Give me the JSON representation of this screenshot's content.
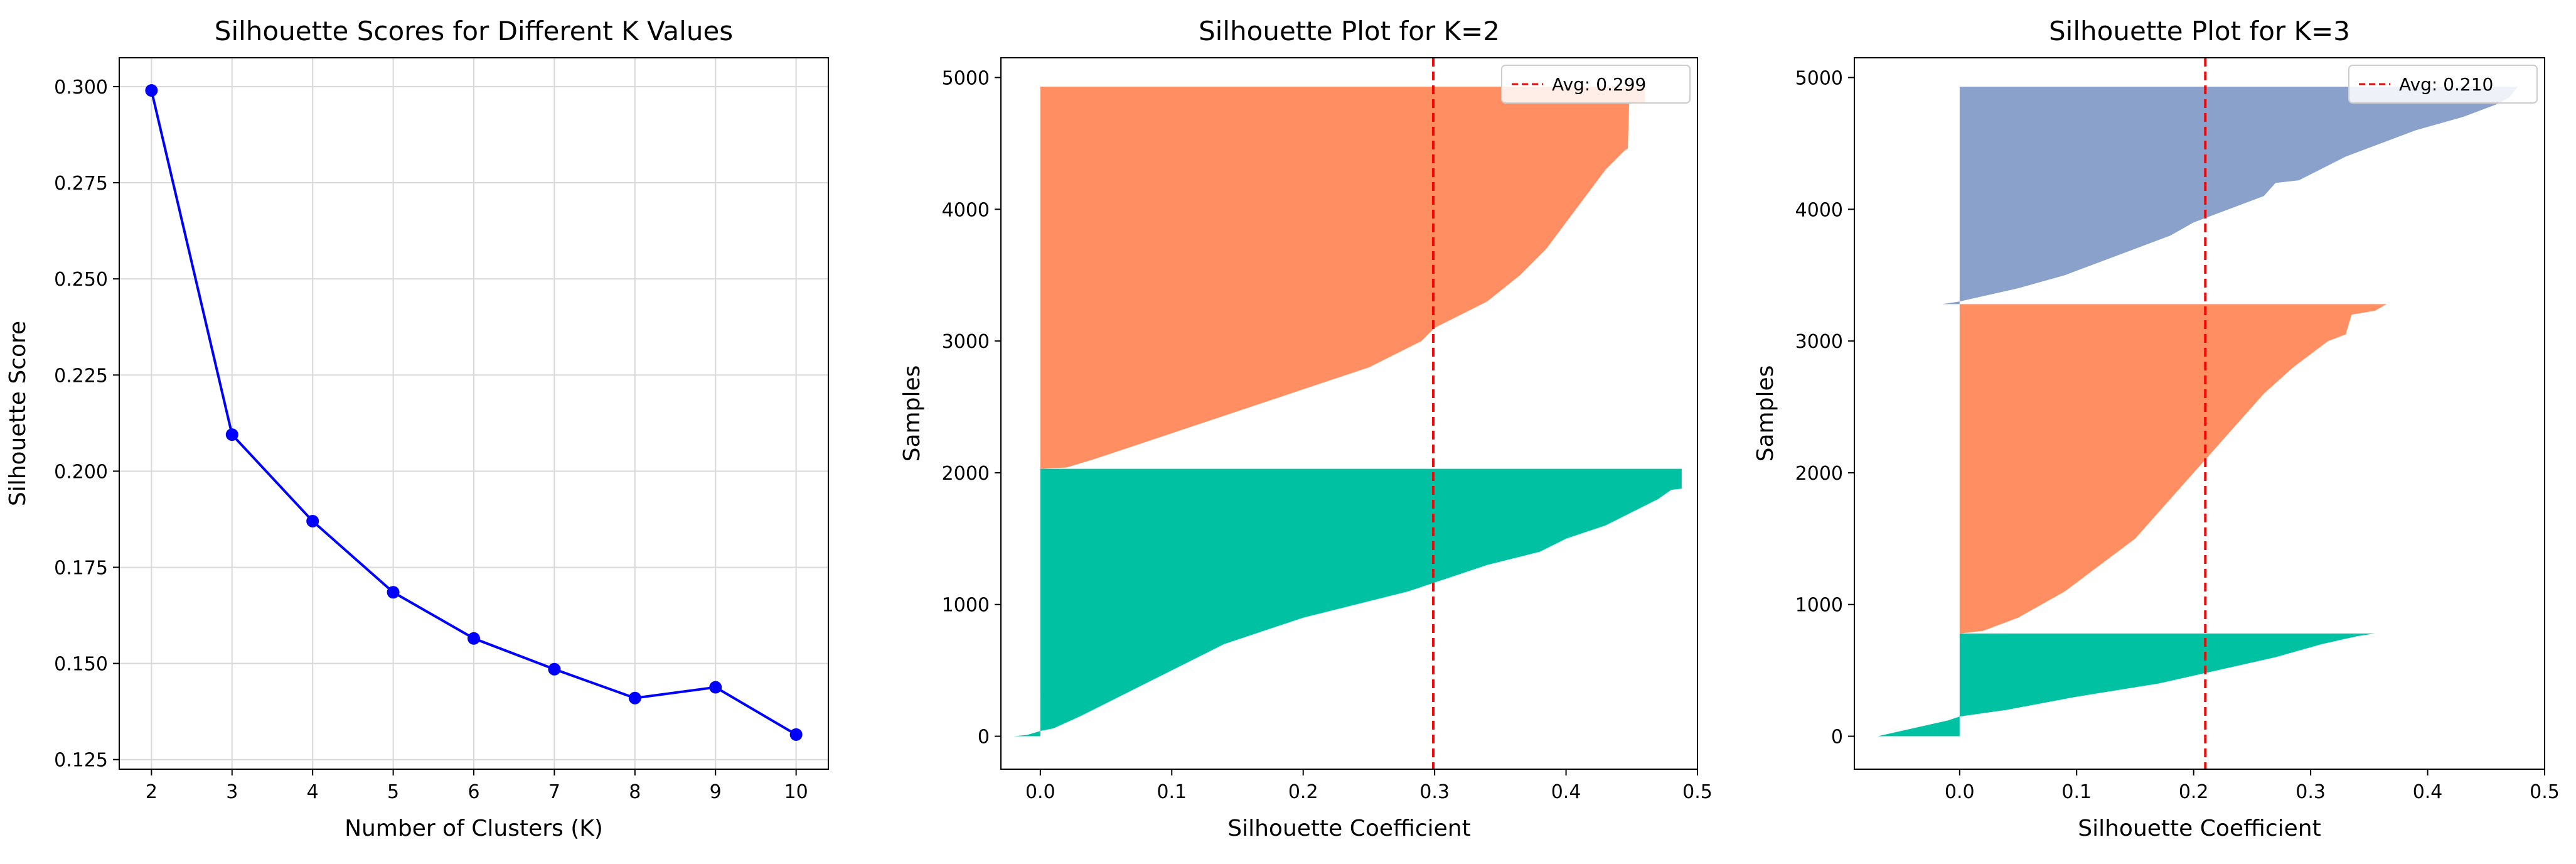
{
  "chart_data": [
    {
      "type": "line",
      "title": "Silhouette Scores for Different K Values",
      "xlabel": "Number of Clusters (K)",
      "ylabel": "Silhouette Score",
      "x": [
        2,
        3,
        4,
        5,
        6,
        7,
        8,
        9,
        10
      ],
      "y": [
        0.299,
        0.2095,
        0.187,
        0.1685,
        0.1565,
        0.1485,
        0.141,
        0.1438,
        0.1315
      ],
      "xticks": [
        2,
        3,
        4,
        5,
        6,
        7,
        8,
        9,
        10
      ],
      "xtick_labels": [
        "2",
        "3",
        "4",
        "5",
        "6",
        "7",
        "8",
        "9",
        "10"
      ],
      "yticks": [
        0.125,
        0.15,
        0.175,
        0.2,
        0.225,
        0.25,
        0.275,
        0.3
      ],
      "ytick_labels": [
        "0.125",
        "0.150",
        "0.175",
        "0.200",
        "0.225",
        "0.250",
        "0.275",
        "0.300"
      ],
      "xlim": [
        1.6,
        10.4
      ],
      "ylim": [
        0.1225,
        0.3075
      ],
      "grid": true,
      "color": "#0000ff",
      "marker": "circle"
    },
    {
      "type": "area",
      "title": "Silhouette Plot for K=2",
      "xlabel": "Silhouette Coefficient",
      "ylabel": "Samples",
      "xlim": [
        -0.03,
        0.5
      ],
      "ylim": [
        -250,
        5150
      ],
      "xticks": [
        0.0,
        0.1,
        0.2,
        0.3,
        0.4,
        0.5
      ],
      "xtick_labels": [
        "0.0",
        "0.1",
        "0.2",
        "0.3",
        "0.4",
        "0.5"
      ],
      "yticks": [
        0,
        1000,
        2000,
        3000,
        4000,
        5000
      ],
      "ytick_labels": [
        "0",
        "1000",
        "2000",
        "3000",
        "4000",
        "5000"
      ],
      "avg_line": {
        "value": 0.299,
        "label": "Avg: 0.299",
        "color": "#ff0000"
      },
      "legend_position": "top-right",
      "grid": false,
      "series": [
        {
          "cluster": 0,
          "color": "#00c2a3",
          "y_range": [
            0,
            2030
          ],
          "profile": [
            [
              0,
              -0.02
            ],
            [
              10,
              -0.01
            ],
            [
              40,
              0.0
            ],
            [
              60,
              0.01
            ],
            [
              150,
              0.03
            ],
            [
              300,
              0.06
            ],
            [
              500,
              0.1
            ],
            [
              700,
              0.14
            ],
            [
              900,
              0.2
            ],
            [
              1000,
              0.24
            ],
            [
              1100,
              0.28
            ],
            [
              1200,
              0.31
            ],
            [
              1300,
              0.34
            ],
            [
              1400,
              0.38
            ],
            [
              1450,
              0.39
            ],
            [
              1500,
              0.4
            ],
            [
              1600,
              0.43
            ],
            [
              1700,
              0.45
            ],
            [
              1800,
              0.47
            ],
            [
              1870,
              0.48
            ],
            [
              1880,
              0.488
            ],
            [
              2030,
              0.488
            ]
          ]
        },
        {
          "cluster": 1,
          "color": "#ff8f62",
          "y_range": [
            2030,
            4930
          ],
          "profile": [
            [
              2030,
              0.0
            ],
            [
              2040,
              0.02
            ],
            [
              2100,
              0.04
            ],
            [
              2200,
              0.07
            ],
            [
              2300,
              0.1
            ],
            [
              2400,
              0.13
            ],
            [
              2500,
              0.16
            ],
            [
              2600,
              0.19
            ],
            [
              2700,
              0.22
            ],
            [
              2800,
              0.25
            ],
            [
              2900,
              0.27
            ],
            [
              3000,
              0.29
            ],
            [
              3100,
              0.3
            ],
            [
              3200,
              0.32
            ],
            [
              3300,
              0.34
            ],
            [
              3500,
              0.365
            ],
            [
              3700,
              0.385
            ],
            [
              3900,
              0.4
            ],
            [
              4100,
              0.415
            ],
            [
              4300,
              0.43
            ],
            [
              4450,
              0.445
            ],
            [
              4460,
              0.447
            ],
            [
              4800,
              0.448
            ],
            [
              4810,
              0.46
            ],
            [
              4930,
              0.46
            ]
          ]
        }
      ]
    },
    {
      "type": "area",
      "title": "Silhouette Plot for K=3",
      "xlabel": "Silhouette Coefficient",
      "ylabel": "Samples",
      "xlim": [
        -0.09,
        0.5
      ],
      "ylim": [
        -250,
        5150
      ],
      "xticks": [
        0.0,
        0.1,
        0.2,
        0.3,
        0.4,
        0.5
      ],
      "xtick_labels": [
        "0.0",
        "0.1",
        "0.2",
        "0.3",
        "0.4",
        "0.5"
      ],
      "yticks": [
        0,
        1000,
        2000,
        3000,
        4000,
        5000
      ],
      "ytick_labels": [
        "0",
        "1000",
        "2000",
        "3000",
        "4000",
        "5000"
      ],
      "avg_line": {
        "value": 0.21,
        "label": "Avg: 0.210",
        "color": "#ff0000"
      },
      "legend_position": "top-right",
      "grid": false,
      "series": [
        {
          "cluster": 0,
          "color": "#00c2a3",
          "y_range": [
            0,
            780
          ],
          "profile": [
            [
              0,
              -0.07
            ],
            [
              40,
              -0.05
            ],
            [
              80,
              -0.03
            ],
            [
              120,
              -0.01
            ],
            [
              150,
              0.0
            ],
            [
              200,
              0.04
            ],
            [
              300,
              0.1
            ],
            [
              400,
              0.17
            ],
            [
              500,
              0.22
            ],
            [
              600,
              0.27
            ],
            [
              700,
              0.31
            ],
            [
              740,
              0.33
            ],
            [
              760,
              0.34
            ],
            [
              780,
              0.355
            ]
          ]
        },
        {
          "cluster": 1,
          "color": "#ff8f62",
          "y_range": [
            780,
            3280
          ],
          "profile": [
            [
              780,
              0.0
            ],
            [
              800,
              0.02
            ],
            [
              900,
              0.05
            ],
            [
              1100,
              0.09
            ],
            [
              1300,
              0.12
            ],
            [
              1500,
              0.15
            ],
            [
              1700,
              0.17
            ],
            [
              1900,
              0.19
            ],
            [
              2000,
              0.2
            ],
            [
              2200,
              0.22
            ],
            [
              2400,
              0.24
            ],
            [
              2600,
              0.26
            ],
            [
              2800,
              0.285
            ],
            [
              2900,
              0.3
            ],
            [
              3000,
              0.315
            ],
            [
              3050,
              0.33
            ],
            [
              3200,
              0.335
            ],
            [
              3230,
              0.355
            ],
            [
              3280,
              0.365
            ]
          ]
        },
        {
          "cluster": 2,
          "color": "#8aa1cc",
          "y_range": [
            3280,
            4930
          ],
          "profile": [
            [
              3280,
              -0.015
            ],
            [
              3300,
              0.0
            ],
            [
              3400,
              0.05
            ],
            [
              3500,
              0.09
            ],
            [
              3600,
              0.12
            ],
            [
              3700,
              0.15
            ],
            [
              3800,
              0.18
            ],
            [
              3900,
              0.2
            ],
            [
              4000,
              0.23
            ],
            [
              4100,
              0.26
            ],
            [
              4200,
              0.27
            ],
            [
              4220,
              0.29
            ],
            [
              4400,
              0.33
            ],
            [
              4600,
              0.39
            ],
            [
              4700,
              0.43
            ],
            [
              4800,
              0.46
            ],
            [
              4850,
              0.47
            ],
            [
              4930,
              0.477
            ]
          ]
        }
      ]
    }
  ]
}
